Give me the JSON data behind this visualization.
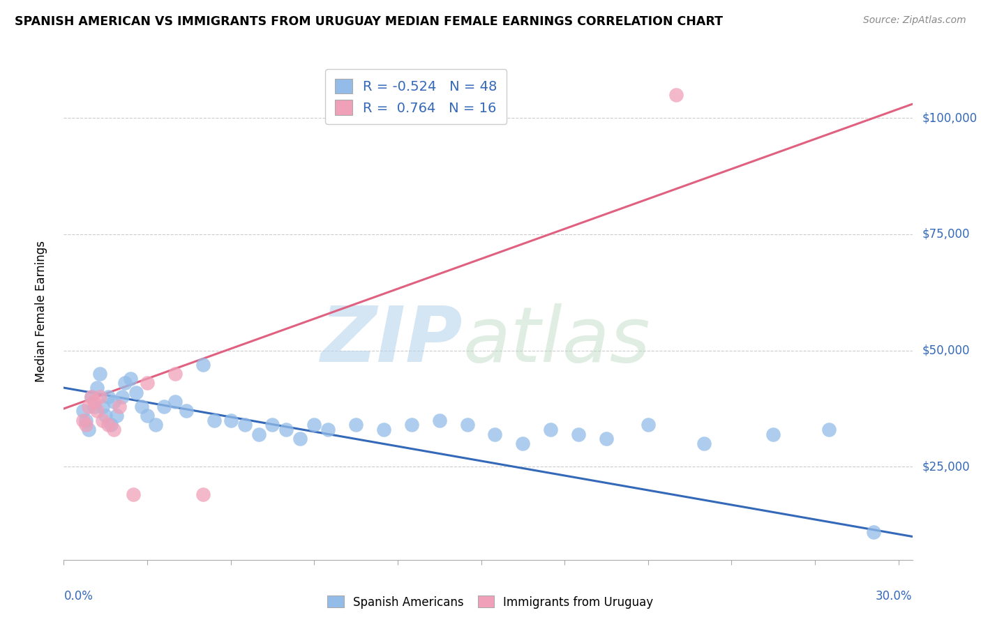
{
  "title": "SPANISH AMERICAN VS IMMIGRANTS FROM URUGUAY MEDIAN FEMALE EARNINGS CORRELATION CHART",
  "source": "Source: ZipAtlas.com",
  "ylabel": "Median Female Earnings",
  "xlim": [
    0.0,
    0.305
  ],
  "ylim": [
    5000,
    112000
  ],
  "blue_R": "-0.524",
  "blue_N": "48",
  "pink_R": "0.764",
  "pink_N": "16",
  "blue_scatter_color": "#93bce8",
  "pink_scatter_color": "#f0a0b8",
  "blue_line_color": "#3468b8",
  "pink_line_color": "#e06080",
  "ytick_vals": [
    25000,
    50000,
    75000,
    100000
  ],
  "ytick_labels": [
    "$25,000",
    "$50,000",
    "$75,000",
    "$100,000"
  ],
  "legend_blue_label": "Spanish Americans",
  "legend_pink_label": "Immigrants from Uruguay",
  "blue_trend_x0": 0.0,
  "blue_trend_y0": 42000,
  "blue_trend_x1": 0.305,
  "blue_trend_y1": 10000,
  "pink_trend_x0": 0.0,
  "pink_trend_y0": 37500,
  "pink_trend_x1": 0.305,
  "pink_trend_y1": 103000,
  "blue_scatter_x": [
    0.007,
    0.008,
    0.009,
    0.01,
    0.011,
    0.012,
    0.013,
    0.014,
    0.015,
    0.016,
    0.017,
    0.018,
    0.019,
    0.021,
    0.022,
    0.024,
    0.026,
    0.028,
    0.03,
    0.033,
    0.036,
    0.04,
    0.044,
    0.05,
    0.054,
    0.06,
    0.065,
    0.07,
    0.075,
    0.08,
    0.085,
    0.09,
    0.095,
    0.105,
    0.115,
    0.125,
    0.135,
    0.145,
    0.155,
    0.165,
    0.175,
    0.185,
    0.195,
    0.21,
    0.23,
    0.255,
    0.275,
    0.291
  ],
  "blue_scatter_y": [
    37000,
    35000,
    33000,
    40000,
    38000,
    42000,
    45000,
    38000,
    36000,
    40000,
    34000,
    39000,
    36000,
    40000,
    43000,
    44000,
    41000,
    38000,
    36000,
    34000,
    38000,
    39000,
    37000,
    47000,
    35000,
    35000,
    34000,
    32000,
    34000,
    33000,
    31000,
    34000,
    33000,
    34000,
    33000,
    34000,
    35000,
    34000,
    32000,
    30000,
    33000,
    32000,
    31000,
    34000,
    30000,
    32000,
    33000,
    11000
  ],
  "pink_scatter_x": [
    0.007,
    0.008,
    0.009,
    0.01,
    0.011,
    0.012,
    0.013,
    0.014,
    0.016,
    0.018,
    0.02,
    0.025,
    0.03,
    0.04,
    0.05,
    0.22
  ],
  "pink_scatter_y": [
    35000,
    34000,
    38000,
    40000,
    39000,
    37000,
    40000,
    35000,
    34000,
    33000,
    38000,
    19000,
    43000,
    45000,
    19000,
    105000
  ]
}
